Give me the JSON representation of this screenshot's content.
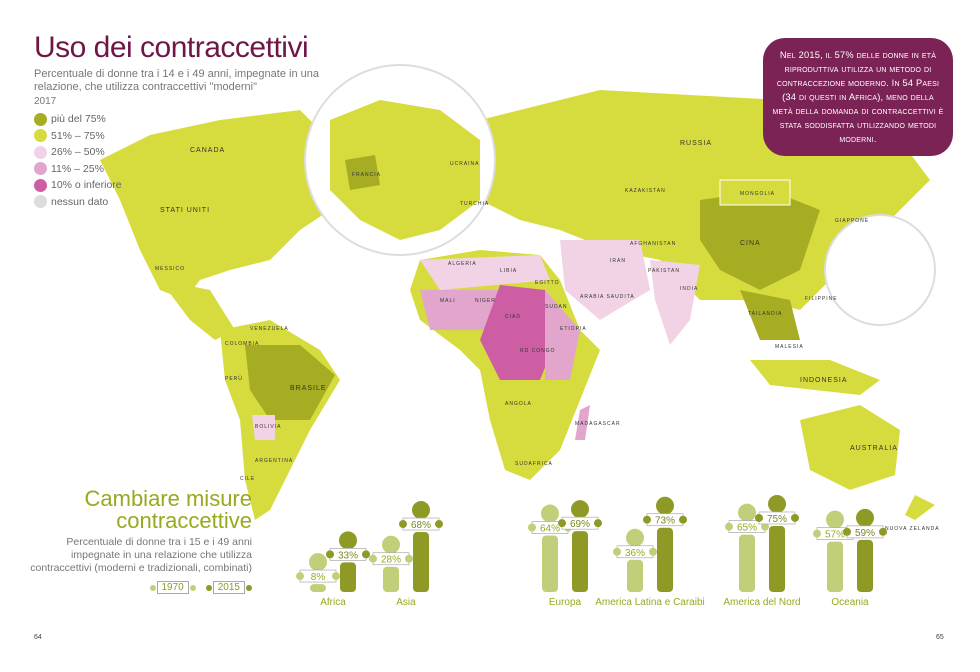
{
  "header": {
    "title": "Uso dei contraccettivi",
    "subtitle": "Percentuale di donne tra i 14 e i 49 anni, impegnate in una relazione, che utilizza contraccettivi \"moderni\"",
    "year": "2017"
  },
  "legend": [
    {
      "label": "più del 75%",
      "color": "#a6ad22"
    },
    {
      "label": "51% – 75%",
      "color": "#d7dc3e"
    },
    {
      "label": "26% – 50%",
      "color": "#f2d3e6"
    },
    {
      "label": "11% – 25%",
      "color": "#e2a6cc"
    },
    {
      "label": "10% o inferiore",
      "color": "#cd5ea3"
    },
    {
      "label": "nessun dato",
      "color": "#dcdcdc"
    }
  ],
  "callout": "Nel 2015, il 57% delle donne in età riproduttiva utilizza un metodo di contraccezione moderno. In 54 Paesi (34 di questi in Africa), meno della metà della domanda di contraccettivi è stata soddisfatta utilizzando metodi moderni.",
  "map_labels": {
    "canada": "CANADA",
    "usa": "STATI UNITI",
    "mexico": "MESSICO",
    "brazil": "BRASILE",
    "russia": "RUSSIA",
    "china": "CINA",
    "india": "INDIA",
    "australia": "AUSTRALIA",
    "indonesia": "INDONESIA",
    "malaysia": "MALESIA",
    "japan": "GIAPPONE",
    "mongolia": "MONGOLIA",
    "kazakhstan": "KAZAKISTAN",
    "iran": "IRAN",
    "libya": "LIBIA",
    "algeria": "ALGERIA",
    "egypt": "EGITTO",
    "sudan": "SUDAN",
    "chad": "CIAD",
    "rdcongo": "RD CONGO",
    "angola": "ANGOLA",
    "southafrica": "SUDAFRICA",
    "argentina": "ARGENTINA",
    "peru": "PERÙ",
    "bolivia": "BOLIVIA",
    "colombia": "COLOMBIA",
    "venezuela": "VENEZUELA",
    "france": "FRANCIA",
    "newzealand": "NUOVA ZELANDA",
    "saudi": "ARABIA SAUDITA",
    "mali": "MALI",
    "niger": "NIGER",
    "ethiopia": "ETIOPIA",
    "madagascar": "MADAGASCAR",
    "pakistan": "PAKISTAN",
    "afghanistan": "AFGHANISTAN",
    "philippines": "FILIPPINE",
    "thailand": "TAILANDIA",
    "ukraine": "UCRAINA",
    "turkey": "TURCHIA",
    "cile": "CILE"
  },
  "chart_data": {
    "type": "bar",
    "title": "Cambiare misure contraccettive",
    "subtitle": "Percentuale di donne tra i 15 e i 49 anni impegnate in una relazione che utilizza contraccettivi (moderni e tradizionali, combinati)",
    "categories": [
      "Africa",
      "Asia",
      "Europa",
      "America Latina e Caraibi",
      "America del Nord",
      "Oceania"
    ],
    "series": [
      {
        "name": "1970",
        "color": "#c2cf7a",
        "values": [
          8,
          28,
          64,
          36,
          65,
          57
        ]
      },
      {
        "name": "2015",
        "color": "#8f9a26",
        "values": [
          33,
          68,
          69,
          73,
          75,
          59
        ]
      }
    ],
    "unit": "%"
  },
  "pages": {
    "left": "64",
    "right": "65"
  }
}
